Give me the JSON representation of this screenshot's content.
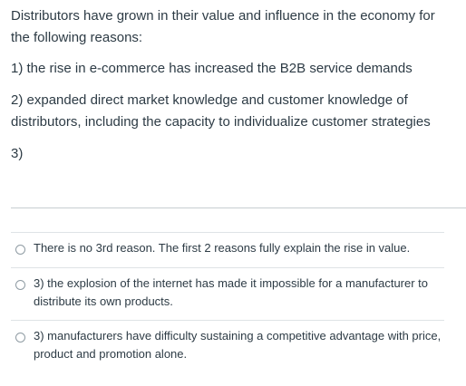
{
  "question": {
    "intro": "Distributors have grown in their value and influence in the economy for the following reasons:",
    "reason1": "1) the rise in e-commerce has increased the B2B service demands",
    "reason2": "2) expanded direct market knowledge and customer knowledge of distributors, including the capacity to individualize customer strategies",
    "reason3": "3)"
  },
  "answers": [
    {
      "label": "There is no 3rd reason. The first 2 reasons fully explain the rise in value.",
      "selected": false
    },
    {
      "label": "3) the explosion of the internet has made it impossible for a manufacturer to distribute its own products.",
      "selected": false
    },
    {
      "label": "3) manufacturers have difficulty sustaining a competitive advantage with price, product and promotion alone.",
      "selected": false
    }
  ]
}
